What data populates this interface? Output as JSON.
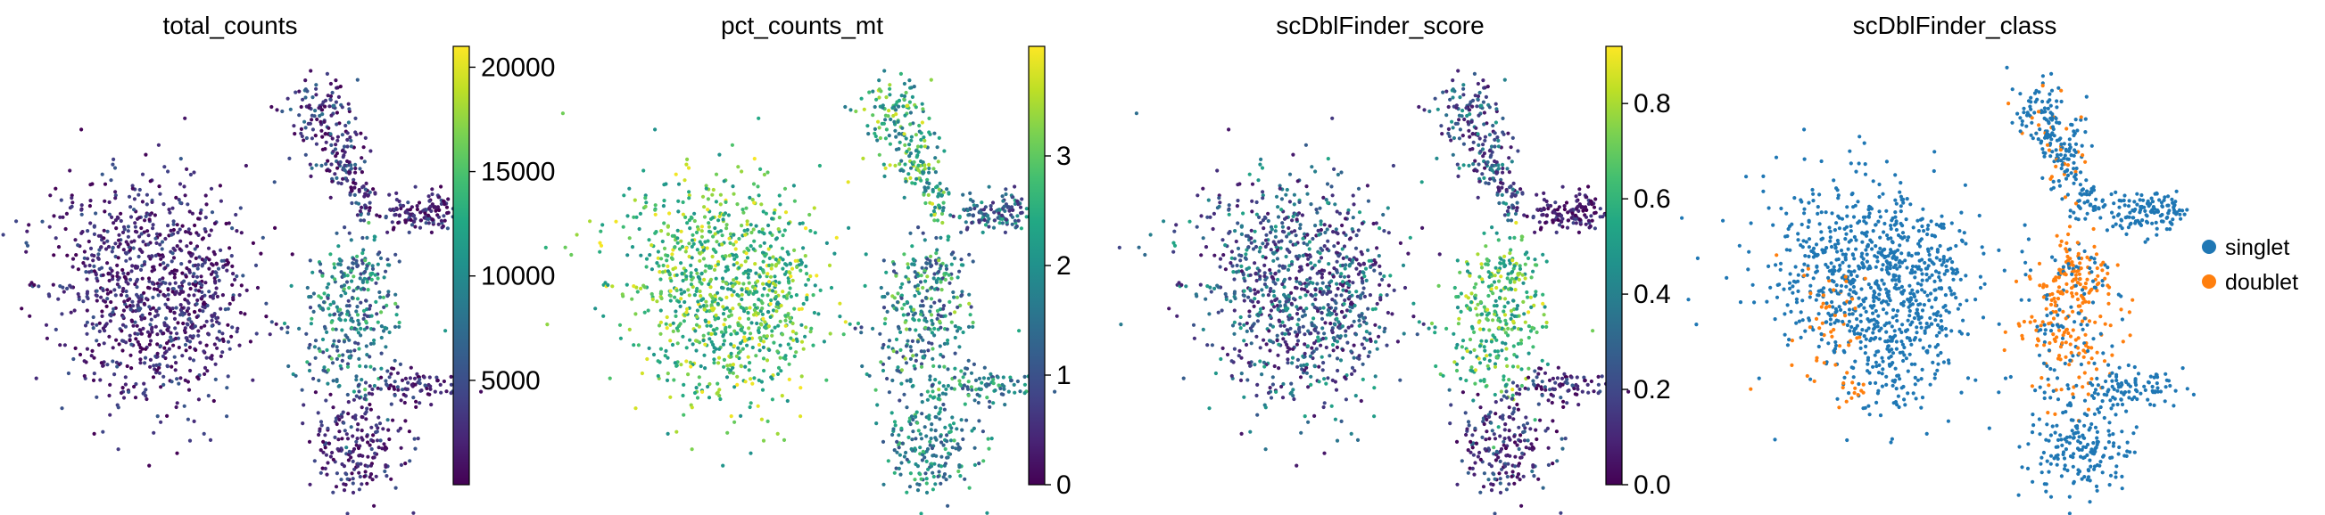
{
  "chart_data": [
    {
      "type": "scatter",
      "title": "total_counts",
      "xlabel": "",
      "ylabel": "",
      "colorscale": "viridis",
      "colorbar": {
        "range": [
          0,
          21000
        ],
        "ticks": [
          5000,
          10000,
          15000,
          20000
        ],
        "tick_labels": [
          "5000",
          "10000",
          "15000",
          "20000"
        ]
      },
      "grid": false,
      "groups": [
        {
          "group": "left-large-cluster",
          "approx_value_range": [
            0,
            6000
          ]
        },
        {
          "group": "upper-right-branch",
          "approx_value_range": [
            0,
            8000
          ]
        },
        {
          "group": "right-arm-tip",
          "approx_value_range": [
            0,
            6000
          ]
        },
        {
          "group": "middle-cluster",
          "approx_value_range": [
            4000,
            16000
          ]
        },
        {
          "group": "lower-right-arm",
          "approx_value_range": [
            0,
            6000
          ]
        },
        {
          "group": "bottom-cluster",
          "approx_value_range": [
            0,
            6000
          ]
        }
      ]
    },
    {
      "type": "scatter",
      "title": "pct_counts_mt",
      "xlabel": "",
      "ylabel": "",
      "colorscale": "viridis",
      "colorbar": {
        "range": [
          0,
          4
        ],
        "ticks": [
          0,
          1,
          2,
          3
        ],
        "tick_labels": [
          "0",
          "1",
          "2",
          "3"
        ]
      },
      "grid": false,
      "groups": [
        {
          "group": "left-large-cluster",
          "approx_value_range": [
            2,
            4
          ]
        },
        {
          "group": "upper-right-branch",
          "approx_value_range": [
            1.5,
            3.8
          ]
        },
        {
          "group": "right-arm-tip",
          "approx_value_range": [
            0.5,
            2.5
          ]
        },
        {
          "group": "middle-cluster",
          "approx_value_range": [
            0.8,
            3.5
          ]
        },
        {
          "group": "lower-right-arm",
          "approx_value_range": [
            1,
            3
          ]
        },
        {
          "group": "bottom-cluster",
          "approx_value_range": [
            1,
            3
          ]
        }
      ]
    },
    {
      "type": "scatter",
      "title": "scDblFinder_score",
      "xlabel": "",
      "ylabel": "",
      "colorscale": "viridis",
      "colorbar": {
        "range": [
          0,
          0.92
        ],
        "ticks": [
          0.0,
          0.2,
          0.4,
          0.6,
          0.8
        ],
        "tick_labels": [
          "0.0",
          "0.2",
          "0.4",
          "0.6",
          "0.8"
        ]
      },
      "grid": false,
      "groups": [
        {
          "group": "left-large-cluster",
          "approx_value_range": [
            0.05,
            0.55
          ]
        },
        {
          "group": "upper-right-branch",
          "approx_value_range": [
            0.05,
            0.5
          ]
        },
        {
          "group": "right-arm-tip",
          "approx_value_range": [
            0.0,
            0.2
          ]
        },
        {
          "group": "middle-cluster",
          "approx_value_range": [
            0.45,
            0.9
          ]
        },
        {
          "group": "lower-right-arm",
          "approx_value_range": [
            0.0,
            0.3
          ]
        },
        {
          "group": "bottom-cluster",
          "approx_value_range": [
            0.0,
            0.35
          ]
        }
      ]
    },
    {
      "type": "scatter",
      "title": "scDblFinder_class",
      "xlabel": "",
      "ylabel": "",
      "grid": false,
      "legend_placement": "right",
      "series": [
        {
          "name": "singlet",
          "color": "#1f77b4"
        },
        {
          "name": "doublet",
          "color": "#ff7f0e"
        }
      ]
    }
  ]
}
